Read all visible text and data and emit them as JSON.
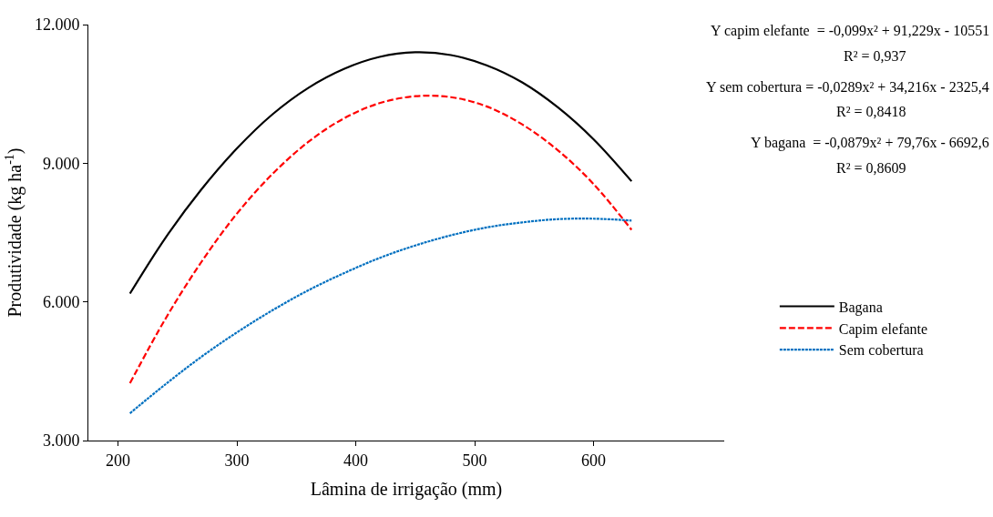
{
  "chart_data": {
    "type": "line",
    "xlabel": "Lâmina de irrigação (mm)",
    "ylabel": "Produtividade (kg ha$^{-1}$)",
    "x": [
      210,
      240,
      270,
      300,
      330,
      360,
      390,
      420,
      450,
      480,
      510,
      540,
      570,
      600,
      632
    ],
    "series": [
      {
        "name": "Bagana",
        "color": "#000000",
        "line_style": "solid",
        "values": [
          6180,
          7390,
          8430,
          9320,
          10060,
          10630,
          11040,
          11300,
          11400,
          11340,
          11120,
          10750,
          10210,
          9520,
          8610
        ]
      },
      {
        "name": "Capim elefante",
        "color": "#ff0000",
        "line_style": "dashed",
        "values": [
          4240,
          5640,
          6860,
          7910,
          8770,
          9460,
          9970,
          10300,
          10450,
          10430,
          10230,
          9840,
          9280,
          8550,
          7560
        ]
      },
      {
        "name": "Sem cobertura",
        "color": "#0070c0",
        "line_style": "dotted",
        "values": [
          3590,
          4220,
          4810,
          5340,
          5820,
          6250,
          6620,
          6950,
          7220,
          7440,
          7610,
          7720,
          7790,
          7800,
          7760
        ]
      }
    ],
    "xlim": [
      175,
      710
    ],
    "xticks": [
      200,
      300,
      400,
      500,
      600
    ],
    "ylim": [
      3000,
      12000
    ],
    "yticks": [
      {
        "value": 3000,
        "label": "3.000"
      },
      {
        "value": 6000,
        "label": "6.000"
      },
      {
        "value": 9000,
        "label": "9.000"
      },
      {
        "value": 12000,
        "label": "12.000"
      }
    ],
    "legend": "right",
    "marker": "none",
    "annotations": [
      "Y capim elefante  = -0,099x² + 91,229x - 10551",
      "R² = 0,937",
      "Y sem cobertura = -0,0289x² + 34,216x - 2325,4",
      "R² = 0,8418",
      "Y bagana  = -0,0879x² + 79,76x - 6692,6",
      "R² = 0,8609"
    ]
  }
}
